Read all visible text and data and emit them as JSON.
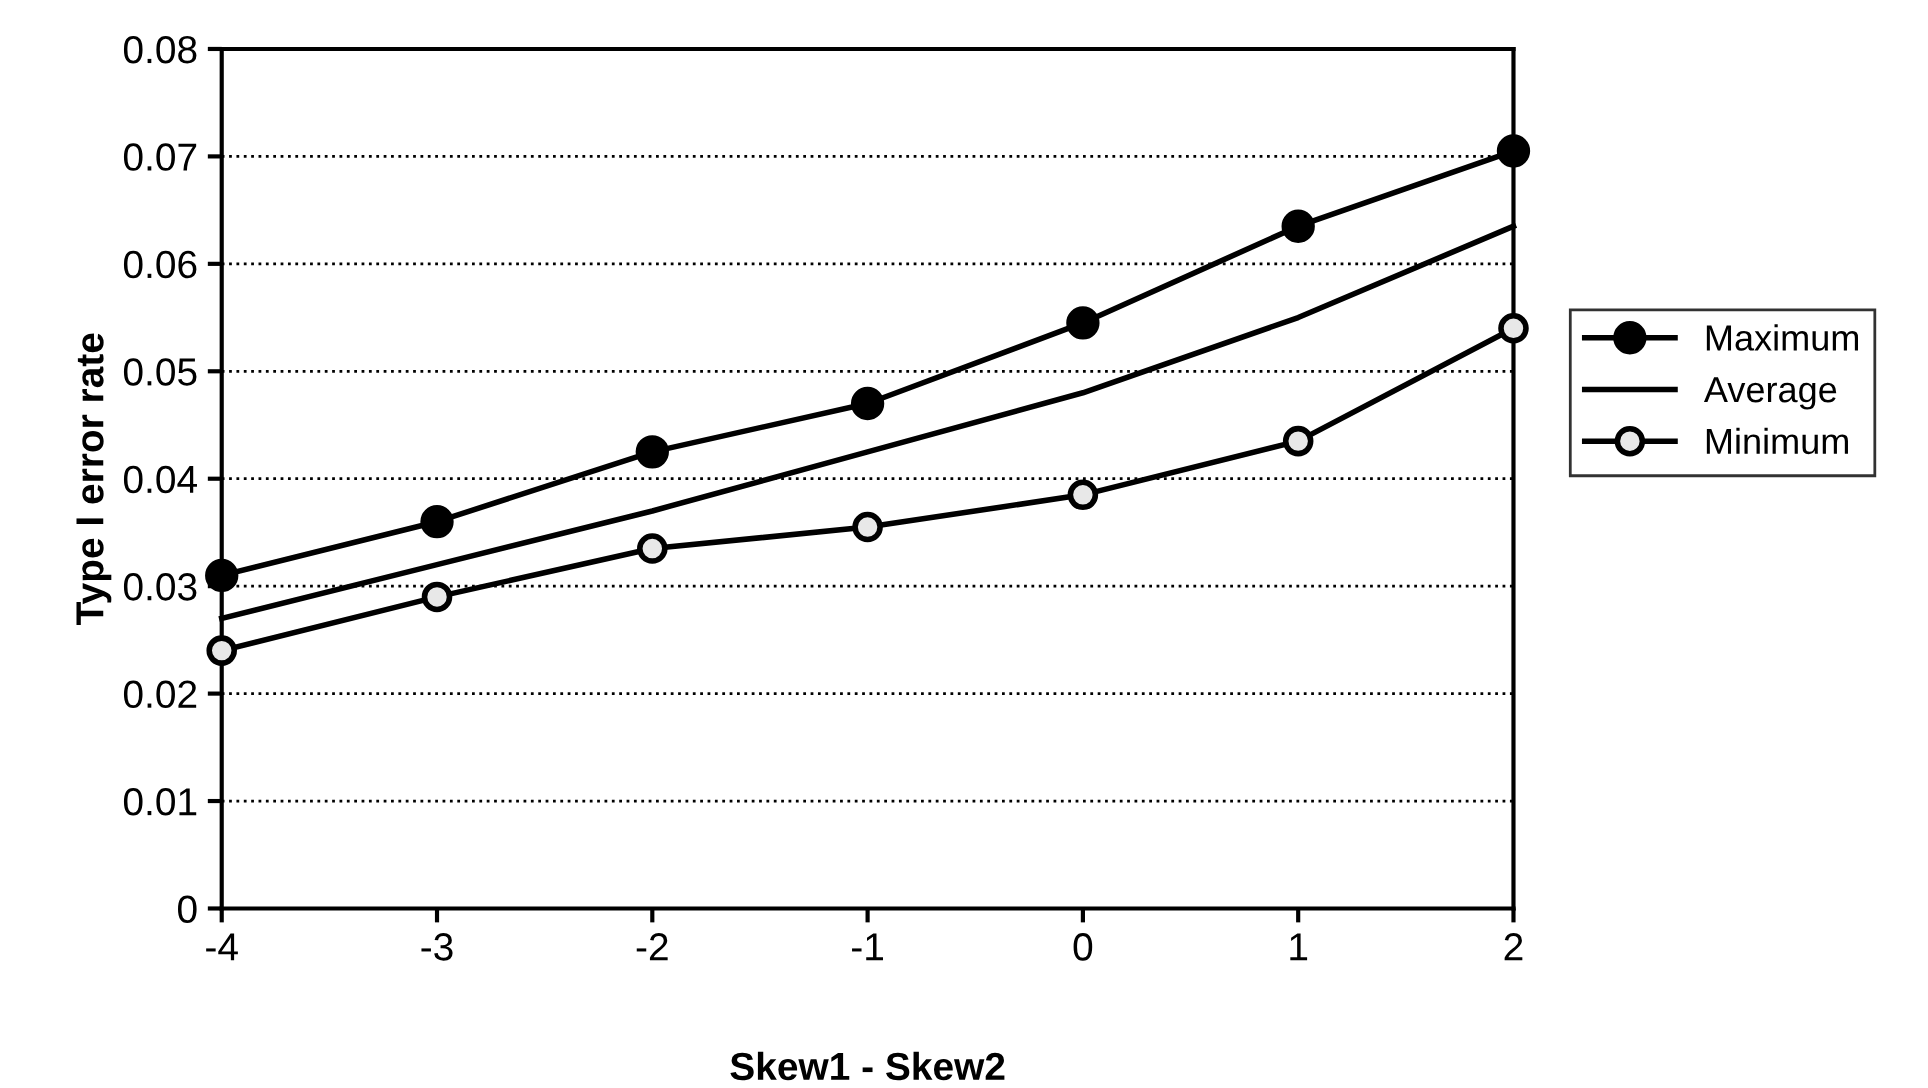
{
  "chart_data": {
    "type": "line",
    "xlabel": "Skew1 - Skew2",
    "ylabel": "Type I error rate",
    "x": [
      -4,
      -3,
      -2,
      -1,
      0,
      1,
      2
    ],
    "series": [
      {
        "name": "Maximum",
        "color": "#000000",
        "marker": "circle",
        "values": [
          0.031,
          0.036,
          0.0425,
          0.047,
          0.0545,
          0.0635,
          0.0705
        ]
      },
      {
        "name": "Average",
        "color": "#000000",
        "marker": "none",
        "values": [
          0.027,
          0.032,
          0.037,
          0.0425,
          0.048,
          0.055,
          0.0635
        ]
      },
      {
        "name": "Minimum",
        "color": "#000000",
        "marker": "circle",
        "values": [
          0.024,
          0.029,
          0.0335,
          0.0355,
          0.0385,
          0.0435,
          0.054
        ]
      }
    ],
    "xlim": [
      -4,
      2
    ],
    "xticks": [
      -4,
      -3,
      -2,
      -1,
      0,
      1,
      2
    ],
    "ylim": [
      0,
      0.08
    ],
    "yticks": [
      {
        "value": 0,
        "label": "0"
      },
      0.01,
      0.02,
      0.03,
      0.04,
      0.05,
      0.06,
      0.07,
      0.08
    ],
    "grid": "y",
    "legend": "right",
    "line_style": "solid"
  }
}
